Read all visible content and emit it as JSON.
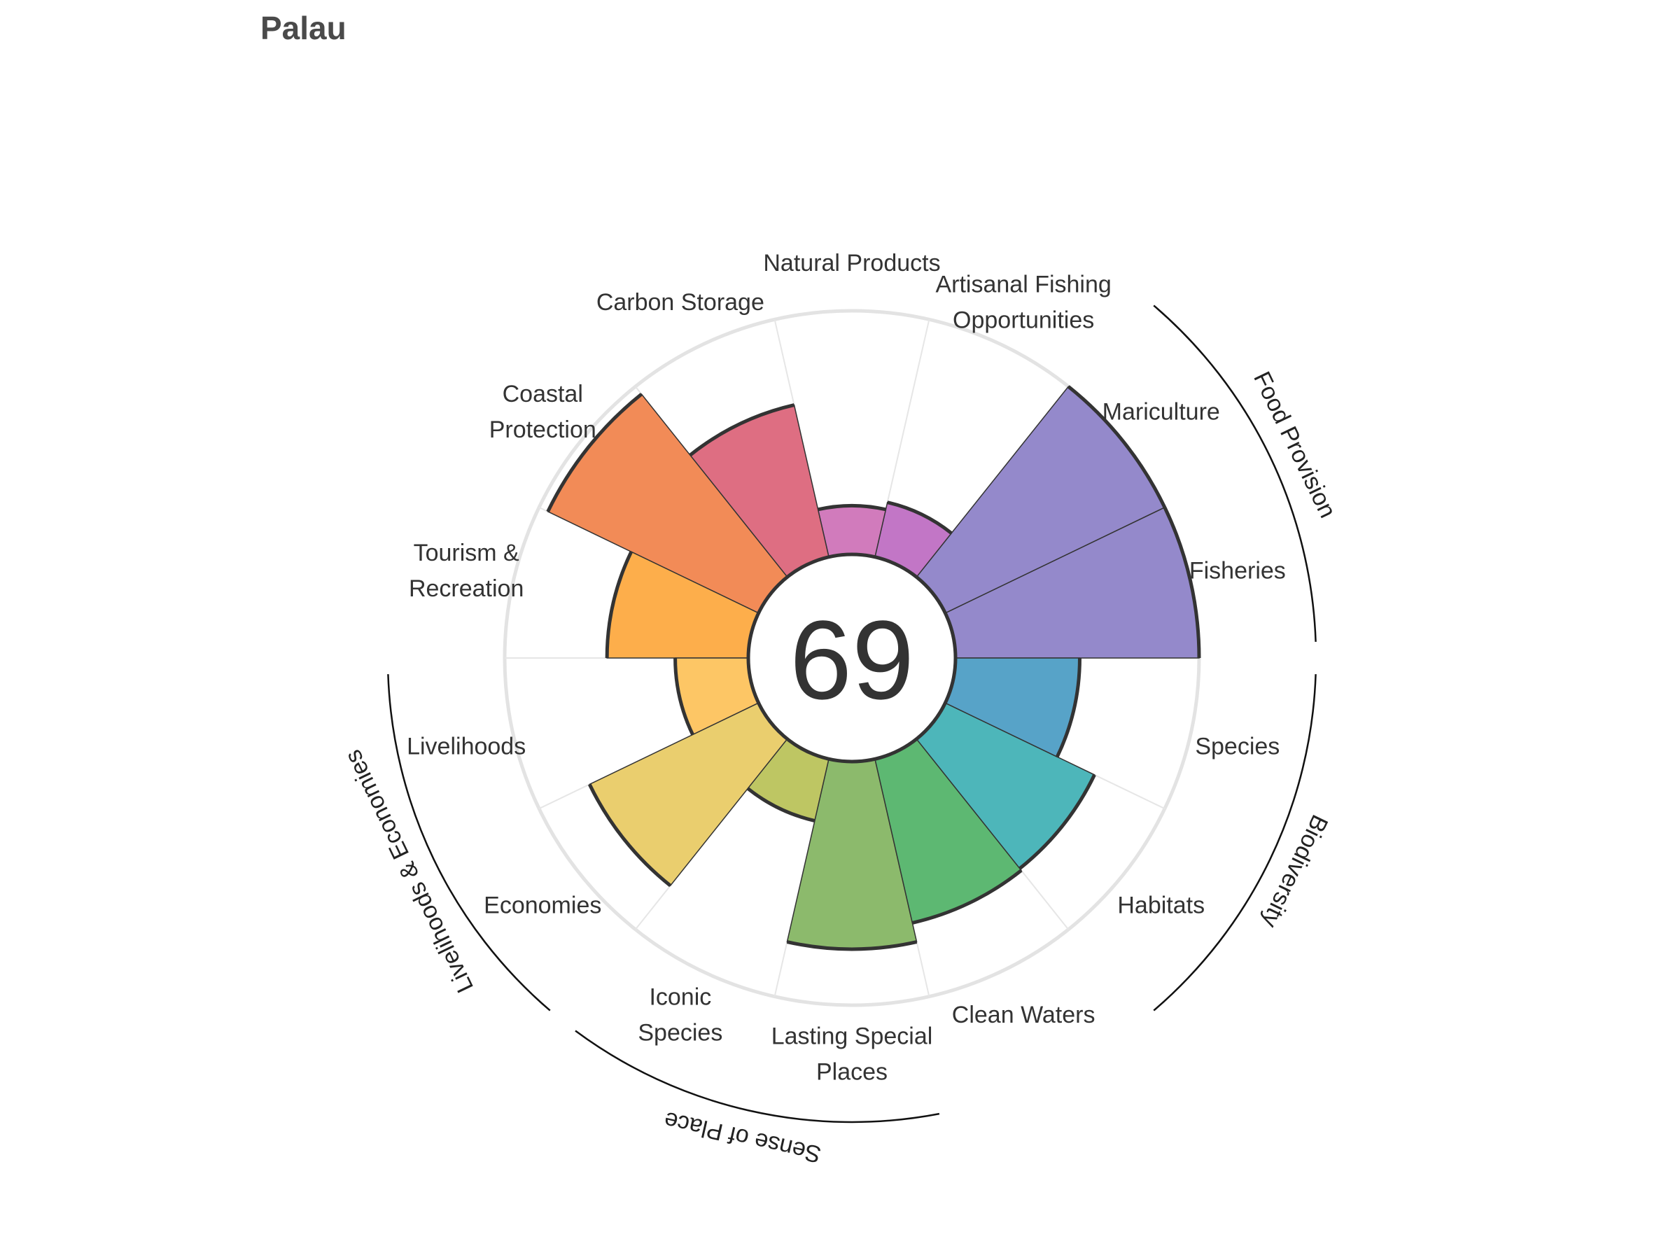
{
  "chart_data": {
    "type": "polar-bar",
    "title": "Palau",
    "center_score": "69",
    "rlim": [
      0,
      100
    ],
    "goals": [
      {
        "name": "Fisheries",
        "value": 100,
        "color": "#9489CB"
      },
      {
        "name": "Mariculture",
        "value": 100,
        "color": "#9489CB"
      },
      {
        "name": "Artisanal Fishing Opportunities",
        "label_lines": [
          "Artisanal Fishing",
          "Opportunities"
        ],
        "value": 23,
        "color": "#C276C6"
      },
      {
        "name": "Natural Products",
        "value": 20,
        "color": "#D17BBC"
      },
      {
        "name": "Carbon Storage",
        "value": 64,
        "color": "#DE6E82"
      },
      {
        "name": "Coastal Protection",
        "label_lines": [
          "Coastal",
          "Protection"
        ],
        "value": 96,
        "color": "#F28B57"
      },
      {
        "name": "Tourism & Recreation",
        "label_lines": [
          "Tourism &",
          "Recreation"
        ],
        "value": 58,
        "color": "#FDAE4B"
      },
      {
        "name": "Livelihoods",
        "value": 30,
        "color": "#FDC665"
      },
      {
        "name": "Economies",
        "value": 77,
        "color": "#EACE6E"
      },
      {
        "name": "Iconic Species",
        "label_lines": [
          "Iconic",
          "Species"
        ],
        "value": 26,
        "color": "#BEC663"
      },
      {
        "name": "Lasting Special Places",
        "label_lines": [
          "Lasting Special",
          "Places"
        ],
        "value": 77,
        "color": "#8CBA6C"
      },
      {
        "name": "Clean Waters",
        "value": 69,
        "color": "#5DB872"
      },
      {
        "name": "Habitats",
        "value": 68,
        "color": "#4DB6BA"
      },
      {
        "name": "Species",
        "value": 51,
        "color": "#57A3C8"
      }
    ],
    "groups": [
      {
        "name": "Food Provision",
        "goals": [
          "Fisheries",
          "Mariculture"
        ]
      },
      {
        "name": "Biodiversity",
        "goals": [
          "Habitats",
          "Species"
        ]
      },
      {
        "name": "Sense of Place",
        "goals": [
          "Iconic Species",
          "Lasting Special Places"
        ]
      },
      {
        "name": "Livelihoods & Economies",
        "goals": [
          "Livelihoods",
          "Economies"
        ]
      }
    ],
    "grid": true
  }
}
